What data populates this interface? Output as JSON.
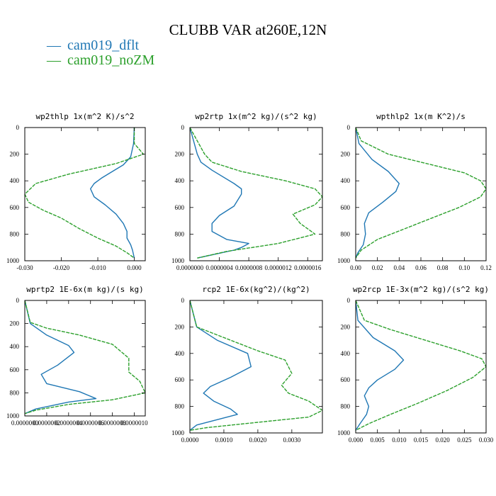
{
  "title": "CLUBB VAR at260E,12N",
  "legend": [
    {
      "label": "cam019_dflt",
      "color": "#1f77b4",
      "symbol": "—"
    },
    {
      "label": "cam019_noZM",
      "color": "#2ca02c",
      "symbol": "—"
    }
  ],
  "chart_data": [
    {
      "type": "line",
      "title": "wp2thlp  1x(m^2 K)/s^2",
      "xlim": [
        -0.03,
        0.003
      ],
      "ylim": [
        1000,
        0
      ],
      "xticks": [
        "-0.030",
        "-0.020",
        "-0.010",
        "0.000"
      ],
      "xtick_values": [
        -0.03,
        -0.02,
        -0.01,
        0.0
      ],
      "yticks": [
        "0",
        "200",
        "400",
        "600",
        "800",
        "1000"
      ],
      "series": [
        {
          "name": "cam019_dflt",
          "color": "#1f77b4",
          "x": [
            0.0,
            -0.0002,
            -0.001,
            -0.003,
            -0.006,
            -0.009,
            -0.011,
            -0.012,
            -0.011,
            -0.008,
            -0.005,
            -0.003,
            -0.002,
            -0.002,
            -0.001,
            -0.0005,
            0.0
          ],
          "y": [
            0,
            120,
            220,
            280,
            330,
            380,
            420,
            460,
            520,
            580,
            650,
            720,
            780,
            830,
            880,
            920,
            980
          ]
        },
        {
          "name": "cam019_noZM",
          "color": "#2ca02c",
          "x": [
            0.0,
            0.0,
            0.0025,
            -0.005,
            -0.018,
            -0.027,
            -0.03,
            -0.029,
            -0.025,
            -0.02,
            -0.015,
            -0.01,
            -0.005,
            -0.002,
            0.0
          ],
          "y": [
            0,
            120,
            200,
            270,
            350,
            420,
            500,
            560,
            620,
            680,
            760,
            830,
            890,
            940,
            980
          ]
        }
      ]
    },
    {
      "type": "line",
      "title": "wp2rtp  1x(m^2 kg)/(s^2 kg)",
      "xlim": [
        0.0,
        1.8e-06
      ],
      "ylim": [
        1000,
        0
      ],
      "xticks": [
        "0.0000000",
        "0.0000004",
        "0.0000008",
        "0.0000012",
        "0.0000016"
      ],
      "xtick_values": [
        0.0,
        4e-07,
        8e-07,
        1.2e-06,
        1.6e-06
      ],
      "yticks": [
        "0",
        "200",
        "400",
        "600",
        "800",
        "1000"
      ],
      "series": [
        {
          "name": "cam019_dflt",
          "color": "#1f77b4",
          "x": [
            0.0,
            1e-07,
            1.5e-07,
            3e-07,
            6e-07,
            7e-07,
            7e-07,
            6e-07,
            4e-07,
            3e-07,
            3e-07,
            5e-07,
            8e-07,
            7e-07,
            6e-07,
            1e-07
          ],
          "y": [
            0,
            200,
            260,
            320,
            420,
            460,
            500,
            590,
            660,
            720,
            780,
            840,
            870,
            900,
            920,
            980
          ]
        },
        {
          "name": "cam019_noZM",
          "color": "#2ca02c",
          "x": [
            0.0,
            2e-07,
            3e-07,
            7e-07,
            1.3e-06,
            1.7e-06,
            1.8e-06,
            1.7e-06,
            1.4e-06,
            1.5e-06,
            1.7e-06,
            1.2e-06,
            5e-07,
            1e-07
          ],
          "y": [
            0,
            200,
            260,
            330,
            400,
            460,
            520,
            580,
            650,
            720,
            800,
            870,
            930,
            980
          ]
        }
      ]
    },
    {
      "type": "line",
      "title": "wpthlp2  1x(m K^2)/s",
      "xlim": [
        0.0,
        0.12
      ],
      "ylim": [
        1000,
        0
      ],
      "xticks": [
        "0.00",
        "0.02",
        "0.04",
        "0.06",
        "0.08",
        "0.10",
        "0.12"
      ],
      "xtick_values": [
        0.0,
        0.02,
        0.04,
        0.06,
        0.08,
        0.1,
        0.12
      ],
      "yticks": [
        "0",
        "200",
        "400",
        "600",
        "800",
        "1000"
      ],
      "series": [
        {
          "name": "cam019_dflt",
          "color": "#1f77b4",
          "x": [
            0.0,
            0.003,
            0.015,
            0.03,
            0.04,
            0.037,
            0.025,
            0.012,
            0.008,
            0.009,
            0.007,
            0.002,
            0.0
          ],
          "y": [
            0,
            120,
            240,
            330,
            420,
            480,
            560,
            640,
            720,
            800,
            880,
            940,
            980
          ]
        },
        {
          "name": "cam019_noZM",
          "color": "#2ca02c",
          "x": [
            0.0,
            0.005,
            0.03,
            0.07,
            0.1,
            0.115,
            0.12,
            0.115,
            0.095,
            0.07,
            0.045,
            0.02,
            0.005,
            0.0
          ],
          "y": [
            0,
            100,
            200,
            280,
            340,
            400,
            460,
            520,
            600,
            680,
            760,
            840,
            920,
            980
          ]
        }
      ]
    },
    {
      "type": "line",
      "title": "wprtp2  1E-6x(m kg)/(s kg)",
      "xlim": [
        0.0,
        1.1e-06
      ],
      "ylim": [
        1000,
        0
      ],
      "xticks": [
        "0.0000000",
        "0.0000002",
        "0.0000004",
        "0.0000006",
        "0.0000008",
        "0.0000010"
      ],
      "xtick_values": [
        0.0,
        2e-07,
        4e-07,
        6e-07,
        8e-07,
        1e-06
      ],
      "yticks": [
        "0",
        "200",
        "400",
        "600",
        "800",
        "1000"
      ],
      "series": [
        {
          "name": "cam019_dflt",
          "color": "#1f77b4",
          "x": [
            0.0,
            5e-08,
            2e-07,
            4e-07,
            4.5e-07,
            3e-07,
            1.5e-07,
            2e-07,
            5e-07,
            6.5e-07,
            4e-07,
            1e-07,
            0.0
          ],
          "y": [
            0,
            200,
            300,
            390,
            450,
            560,
            640,
            720,
            790,
            850,
            880,
            940,
            980
          ]
        },
        {
          "name": "cam019_noZM",
          "color": "#2ca02c",
          "x": [
            0.0,
            5e-08,
            2e-07,
            5e-07,
            8e-07,
            9.5e-07,
            9.5e-07,
            1.05e-06,
            1.1e-06,
            8e-07,
            4e-07,
            1e-07,
            0.0
          ],
          "y": [
            0,
            190,
            240,
            300,
            380,
            500,
            620,
            700,
            800,
            860,
            900,
            950,
            980
          ]
        }
      ]
    },
    {
      "type": "line",
      "title": "rcp2  1E-6x(kg^2)/(kg^2)",
      "xlim": [
        0.0,
        0.0039
      ],
      "ylim": [
        1000,
        0
      ],
      "xticks": [
        "0.0000",
        "0.0010",
        "0.0020",
        "0.0030"
      ],
      "xtick_values": [
        0.0,
        0.001,
        0.002,
        0.003
      ],
      "yticks": [
        "0",
        "200",
        "400",
        "600",
        "800",
        "1000"
      ],
      "series": [
        {
          "name": "cam019_dflt",
          "color": "#1f77b4",
          "x": [
            0.0,
            0.0002,
            0.0008,
            0.0017,
            0.0018,
            0.0012,
            0.0006,
            0.0004,
            0.0007,
            0.0012,
            0.0014,
            0.0008,
            0.0002,
            0.0
          ],
          "y": [
            0,
            200,
            300,
            400,
            500,
            580,
            650,
            700,
            760,
            820,
            860,
            900,
            940,
            980
          ]
        },
        {
          "name": "cam019_noZM",
          "color": "#2ca02c",
          "x": [
            0.0,
            0.0002,
            0.001,
            0.002,
            0.0028,
            0.003,
            0.0027,
            0.0029,
            0.0035,
            0.0039,
            0.0035,
            0.002,
            0.0005,
            0.0
          ],
          "y": [
            0,
            200,
            280,
            380,
            450,
            550,
            640,
            700,
            760,
            830,
            880,
            920,
            960,
            980
          ]
        }
      ]
    },
    {
      "type": "line",
      "title": "wp2rcp  1E-3x(m^2 kg)/(s^2 kg)",
      "xlim": [
        0.0,
        0.03
      ],
      "ylim": [
        1000,
        0
      ],
      "xticks": [
        "0.000",
        "0.005",
        "0.010",
        "0.015",
        "0.020",
        "0.025",
        "0.030"
      ],
      "xtick_values": [
        0.0,
        0.005,
        0.01,
        0.015,
        0.02,
        0.025,
        0.03
      ],
      "yticks": [
        "0",
        "200",
        "400",
        "600",
        "800",
        "1000"
      ],
      "series": [
        {
          "name": "cam019_dflt",
          "color": "#1f77b4",
          "x": [
            0.0,
            0.0005,
            0.004,
            0.009,
            0.011,
            0.009,
            0.005,
            0.003,
            0.002,
            0.003,
            0.0025,
            0.001,
            0.0
          ],
          "y": [
            0,
            150,
            280,
            380,
            450,
            520,
            600,
            660,
            720,
            800,
            860,
            930,
            980
          ]
        },
        {
          "name": "cam019_noZM",
          "color": "#2ca02c",
          "x": [
            0.0,
            0.002,
            0.008,
            0.016,
            0.024,
            0.029,
            0.03,
            0.027,
            0.021,
            0.014,
            0.008,
            0.003,
            0.0
          ],
          "y": [
            0,
            150,
            220,
            300,
            380,
            440,
            500,
            580,
            680,
            780,
            860,
            930,
            980
          ]
        }
      ]
    }
  ]
}
